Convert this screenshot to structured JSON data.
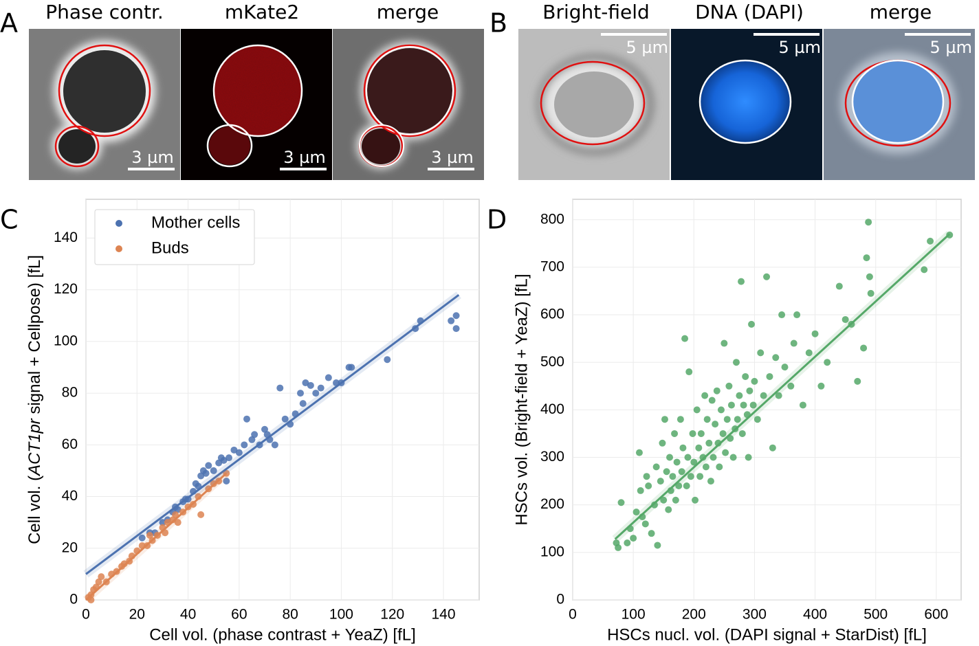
{
  "panels": {
    "A": {
      "label": "A",
      "titles": [
        "Phase contr.",
        "mKate2",
        "merge"
      ],
      "scale_bars": [
        "3 µm",
        "3 µm",
        "3 µm"
      ]
    },
    "B": {
      "label": "B",
      "titles": [
        "Bright-field",
        "DNA (DAPI)",
        "merge"
      ],
      "scale_bars": [
        "5 µm",
        "5 µm",
        "5 µm"
      ]
    },
    "C": {
      "label": "C"
    },
    "D": {
      "label": "D"
    }
  },
  "chart_data": [
    {
      "type": "scatter",
      "xlabel": "Cell vol. (phase contrast + YeaZ) [fL]",
      "ylabel_parts": [
        "Cell vol. (",
        "ACT1pr",
        " signal + Cellpose) [fL]"
      ],
      "xlim": [
        0,
        154
      ],
      "ylim": [
        0,
        155
      ],
      "xticks": [
        0,
        20,
        40,
        60,
        80,
        100,
        120,
        140
      ],
      "yticks": [
        0,
        20,
        40,
        60,
        80,
        100,
        120,
        140
      ],
      "grid": true,
      "legend": "upper left",
      "series": [
        {
          "name": "Mother cells",
          "color": "#4c72b0",
          "x": [
            22,
            25,
            27,
            30,
            32,
            34,
            35,
            36,
            38,
            39,
            40,
            42,
            43,
            44,
            45,
            46,
            47,
            48,
            50,
            52,
            53,
            54,
            55,
            56,
            58,
            60,
            62,
            63,
            65,
            66,
            68,
            70,
            71,
            72,
            74,
            76,
            78,
            80,
            82,
            84,
            85,
            86,
            88,
            90,
            92,
            95,
            98,
            100,
            103,
            104,
            118,
            129,
            131,
            143,
            145,
            145
          ],
          "values": [
            24,
            26,
            26,
            30,
            31,
            34,
            36,
            35,
            38,
            39,
            39,
            42,
            45,
            44,
            48,
            50,
            49,
            52,
            50,
            53,
            55,
            54,
            46,
            55,
            58,
            57,
            60,
            70,
            62,
            64,
            60,
            66,
            64,
            62,
            60,
            82,
            70,
            68,
            72,
            80,
            76,
            84,
            83,
            80,
            82,
            86,
            84,
            84,
            90,
            90,
            93,
            105,
            108,
            108,
            105,
            110
          ],
          "fit_x": [
            0,
            146
          ],
          "fit_values": [
            10,
            118
          ]
        },
        {
          "name": "Buds",
          "color": "#dd8452",
          "x": [
            1,
            2,
            2,
            3,
            4,
            5,
            6,
            8,
            10,
            12,
            14,
            15,
            17,
            18,
            20,
            22,
            24,
            25,
            26,
            28,
            30,
            31,
            32,
            34,
            35,
            36,
            38,
            40,
            42,
            44,
            45,
            48,
            50,
            52,
            55
          ],
          "values": [
            1,
            2,
            0,
            4,
            5,
            7,
            9,
            7,
            10,
            11,
            13,
            14,
            15,
            17,
            19,
            21,
            21,
            25,
            23,
            25,
            28,
            26,
            30,
            31,
            33,
            30,
            34,
            36,
            37,
            40,
            33,
            43,
            45,
            46,
            49
          ],
          "fit_x": [
            0,
            55
          ],
          "fit_values": [
            0,
            49
          ]
        }
      ]
    },
    {
      "type": "scatter",
      "xlabel": "HSCs nucl. vol. (DAPI signal + StarDist) [fL]",
      "ylabel": "HSCs vol. (Bright-field + YeaZ) [fL]",
      "xlim": [
        0,
        641
      ],
      "ylim": [
        0,
        843
      ],
      "xticks": [
        0,
        100,
        200,
        300,
        400,
        500,
        600
      ],
      "yticks": [
        0,
        100,
        200,
        300,
        400,
        500,
        600,
        700,
        800
      ],
      "grid": true,
      "series": [
        {
          "color": "#55a868",
          "x": [
            72,
            75,
            80,
            90,
            95,
            100,
            105,
            110,
            112,
            115,
            120,
            122,
            125,
            130,
            135,
            138,
            140,
            145,
            148,
            150,
            152,
            155,
            158,
            160,
            162,
            165,
            168,
            170,
            172,
            175,
            178,
            180,
            182,
            185,
            188,
            190,
            192,
            195,
            198,
            200,
            202,
            205,
            208,
            210,
            212,
            215,
            218,
            220,
            222,
            225,
            228,
            230,
            232,
            235,
            238,
            240,
            242,
            245,
            248,
            250,
            252,
            255,
            258,
            260,
            262,
            265,
            268,
            270,
            272,
            275,
            278,
            280,
            282,
            285,
            288,
            290,
            292,
            295,
            298,
            300,
            305,
            310,
            315,
            320,
            325,
            330,
            335,
            340,
            345,
            350,
            360,
            365,
            370,
            380,
            390,
            400,
            410,
            420,
            440,
            450,
            460,
            470,
            480,
            485,
            488,
            490,
            492,
            580,
            590,
            622
          ],
          "values": [
            120,
            110,
            205,
            120,
            150,
            130,
            185,
            310,
            230,
            175,
            160,
            260,
            240,
            140,
            200,
            280,
            115,
            250,
            330,
            210,
            380,
            270,
            190,
            300,
            230,
            260,
            350,
            210,
            290,
            240,
            380,
            270,
            320,
            550,
            240,
            300,
            480,
            260,
            350,
            290,
            210,
            400,
            320,
            260,
            350,
            300,
            430,
            280,
            380,
            330,
            250,
            420,
            300,
            370,
            440,
            330,
            280,
            400,
            350,
            540,
            310,
            380,
            450,
            340,
            410,
            300,
            360,
            500,
            380,
            430,
            670,
            350,
            410,
            470,
            390,
            300,
            440,
            580,
            410,
            460,
            380,
            520,
            430,
            680,
            470,
            320,
            510,
            430,
            600,
            490,
            450,
            540,
            600,
            410,
            520,
            560,
            450,
            500,
            660,
            590,
            580,
            460,
            530,
            720,
            795,
            680,
            645,
            695,
            755,
            768
          ],
          "fit_x": [
            70,
            622
          ],
          "fit_values": [
            128,
            770
          ]
        }
      ]
    }
  ]
}
